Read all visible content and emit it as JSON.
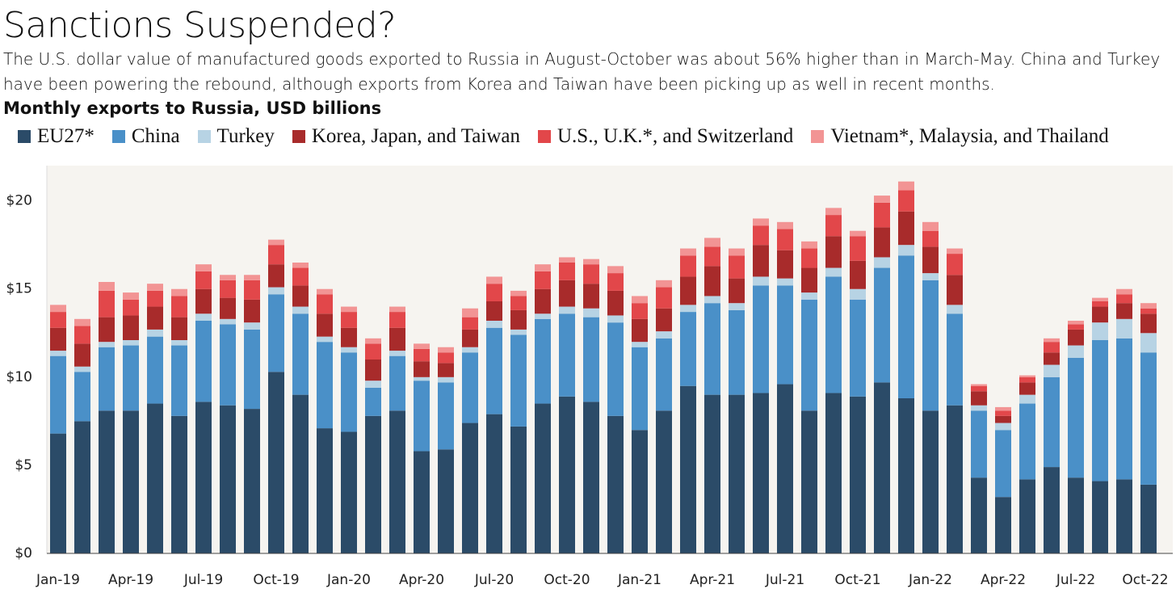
{
  "chart_data": {
    "type": "stacked_bar",
    "title": "Sanctions Suspended?",
    "subtitle": "The U.S. dollar value of manufactured goods exported to Russia in August-October was about 56% higher than in March-May. China and Turkey have been powering the rebound, although exports from Korea and Taiwan have been picking up as well in recent months.",
    "y_label": "Monthly exports to Russia, USD billions",
    "categories": [
      "Jan-19",
      null,
      null,
      "Apr-19",
      null,
      null,
      "Jul-19",
      null,
      null,
      "Oct-19",
      null,
      null,
      "Jan-20",
      null,
      null,
      "Apr-20",
      null,
      null,
      "Jul-20",
      null,
      null,
      "Oct-20",
      null,
      null,
      "Jan-21",
      null,
      null,
      "Apr-21",
      null,
      null,
      "Jul-21",
      null,
      null,
      "Oct-21",
      null,
      null,
      "Jan-22",
      null,
      null,
      "Apr-22",
      null,
      null,
      "Jul-22",
      null,
      null,
      "Oct-22"
    ],
    "series": [
      {
        "name": "EU27*",
        "color": "#2b4b68",
        "values": [
          6.8,
          7.5,
          8.1,
          8.1,
          8.5,
          7.8,
          8.6,
          8.4,
          8.2,
          10.3,
          9.0,
          7.1,
          6.9,
          7.8,
          8.1,
          5.8,
          5.9,
          7.4,
          7.9,
          7.2,
          8.5,
          8.9,
          8.6,
          7.8,
          7.0,
          8.1,
          9.5,
          9.0,
          9.0,
          9.1,
          9.6,
          8.1,
          9.1,
          8.9,
          9.7,
          8.8,
          8.1,
          8.4,
          4.3,
          3.2,
          4.2,
          4.9,
          4.3,
          4.1,
          4.2,
          3.9
        ]
      },
      {
        "name": "China",
        "color": "#4a90c8",
        "values": [
          4.4,
          2.8,
          3.6,
          3.7,
          3.8,
          4.0,
          4.6,
          4.6,
          4.5,
          4.4,
          4.6,
          4.9,
          4.5,
          1.6,
          3.1,
          4.0,
          3.8,
          4.0,
          4.9,
          5.2,
          4.8,
          4.7,
          4.8,
          5.3,
          4.7,
          4.1,
          4.2,
          5.2,
          4.8,
          6.1,
          5.6,
          6.3,
          6.6,
          5.5,
          6.5,
          8.1,
          7.4,
          5.2,
          3.8,
          3.8,
          4.3,
          5.1,
          6.8,
          8.0,
          8.0,
          7.5
        ]
      },
      {
        "name": "Turkey",
        "color": "#b7d3e4",
        "values": [
          0.3,
          0.3,
          0.3,
          0.3,
          0.4,
          0.3,
          0.4,
          0.3,
          0.4,
          0.4,
          0.4,
          0.3,
          0.3,
          0.4,
          0.3,
          0.2,
          0.3,
          0.3,
          0.4,
          0.3,
          0.3,
          0.4,
          0.5,
          0.4,
          0.3,
          0.4,
          0.4,
          0.4,
          0.4,
          0.5,
          0.4,
          0.4,
          0.5,
          0.6,
          0.6,
          0.6,
          0.4,
          0.5,
          0.3,
          0.4,
          0.5,
          0.7,
          0.7,
          1.0,
          1.1,
          1.1
        ]
      },
      {
        "name": "Korea, Japan, and Taiwan",
        "color": "#a82b2b",
        "values": [
          1.3,
          1.3,
          1.4,
          1.4,
          1.3,
          1.3,
          1.4,
          1.2,
          1.3,
          1.3,
          1.2,
          1.3,
          1.1,
          1.2,
          1.3,
          0.9,
          0.8,
          1.0,
          1.1,
          1.1,
          1.4,
          1.5,
          1.4,
          1.4,
          1.3,
          1.3,
          1.6,
          1.7,
          1.4,
          1.8,
          1.6,
          1.4,
          1.8,
          1.6,
          1.7,
          1.9,
          1.5,
          1.7,
          0.8,
          0.4,
          0.7,
          0.7,
          0.9,
          0.9,
          0.9,
          1.1
        ]
      },
      {
        "name": "U.S., U.K.*, and Switzerland",
        "color": "#e2474a",
        "values": [
          0.9,
          1.0,
          1.5,
          0.9,
          0.9,
          1.2,
          1.0,
          1.0,
          1.1,
          1.1,
          1.0,
          1.1,
          0.9,
          0.9,
          0.9,
          0.7,
          0.6,
          0.7,
          1.0,
          0.8,
          1.0,
          1.0,
          1.1,
          1.0,
          0.9,
          1.2,
          1.2,
          1.1,
          1.3,
          1.1,
          1.2,
          1.1,
          1.2,
          1.4,
          1.4,
          1.2,
          0.9,
          1.2,
          0.3,
          0.3,
          0.3,
          0.6,
          0.3,
          0.3,
          0.5,
          0.3
        ]
      },
      {
        "name": "Vietnam*, Malaysia, and Thailand",
        "color": "#f29494",
        "values": [
          0.4,
          0.4,
          0.5,
          0.4,
          0.4,
          0.4,
          0.4,
          0.3,
          0.3,
          0.3,
          0.3,
          0.3,
          0.3,
          0.3,
          0.3,
          0.3,
          0.3,
          0.5,
          0.4,
          0.3,
          0.4,
          0.3,
          0.3,
          0.4,
          0.4,
          0.4,
          0.4,
          0.5,
          0.4,
          0.4,
          0.4,
          0.4,
          0.4,
          0.3,
          0.4,
          0.5,
          0.5,
          0.3,
          0.1,
          0.2,
          0.1,
          0.2,
          0.2,
          0.2,
          0.3,
          0.3
        ]
      }
    ],
    "ylim": [
      0,
      22
    ],
    "yticks": [
      {
        "value": 0,
        "label": "$0"
      },
      {
        "value": 5,
        "label": "$5"
      },
      {
        "value": 10,
        "label": "$10"
      },
      {
        "value": 15,
        "label": "$15"
      },
      {
        "value": 20,
        "label": "$20"
      }
    ],
    "grid": false,
    "legend": "top"
  }
}
